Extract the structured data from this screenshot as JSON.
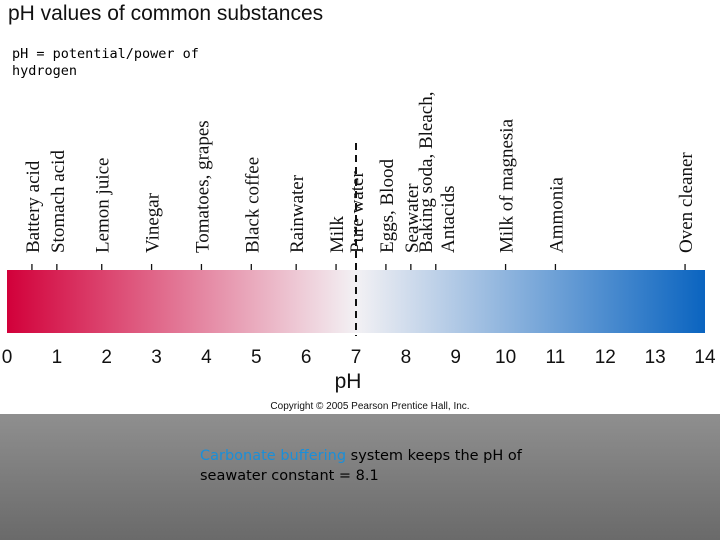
{
  "title": "pH values of common substances",
  "definition": "pH = potential/power of hydrogen",
  "copyright": "Copyright © 2005 Pearson Prentice Hall, Inc.",
  "caption": {
    "highlight": "Carbonate buffering",
    "rest": " system keeps the pH of seawater constant = 8.1"
  },
  "colors": {
    "acid": "#d2003a",
    "neutral": "#f3f1f4",
    "base": "#0a64c0",
    "caption_highlight": "#1a8fd9"
  },
  "chart_data": {
    "type": "scale",
    "xlabel": "pH",
    "xlim": [
      0,
      14
    ],
    "ticks": [
      "0",
      "1",
      "2",
      "3",
      "4",
      "5",
      "6",
      "7",
      "8",
      "9",
      "10",
      "11",
      "12",
      "13",
      "14"
    ],
    "neutral_line": 7,
    "substances": [
      {
        "lines": [
          "Battery acid"
        ],
        "ph": 0.5
      },
      {
        "lines": [
          "Stomach acid"
        ],
        "ph": 1.0
      },
      {
        "lines": [
          "Lemon juice"
        ],
        "ph": 1.9
      },
      {
        "lines": [
          "Vinegar"
        ],
        "ph": 2.9
      },
      {
        "lines": [
          "Tomatoes, grapes"
        ],
        "ph": 3.9
      },
      {
        "lines": [
          "Black coffee"
        ],
        "ph": 4.9
      },
      {
        "lines": [
          "Rainwater"
        ],
        "ph": 5.8
      },
      {
        "lines": [
          "Milk"
        ],
        "ph": 6.6
      },
      {
        "lines": [
          "Pure water"
        ],
        "ph": 7.0
      },
      {
        "lines": [
          "Eggs, Blood"
        ],
        "ph": 7.6
      },
      {
        "lines": [
          "Seawater"
        ],
        "ph": 8.1
      },
      {
        "lines": [
          "Baking soda, Bleach,",
          "Antacids"
        ],
        "ph": 8.6
      },
      {
        "lines": [
          "Milk of magnesia"
        ],
        "ph": 10.0
      },
      {
        "lines": [
          "Ammonia"
        ],
        "ph": 11.0
      },
      {
        "lines": [
          "Oven cleaner"
        ],
        "ph": 13.6
      }
    ]
  }
}
